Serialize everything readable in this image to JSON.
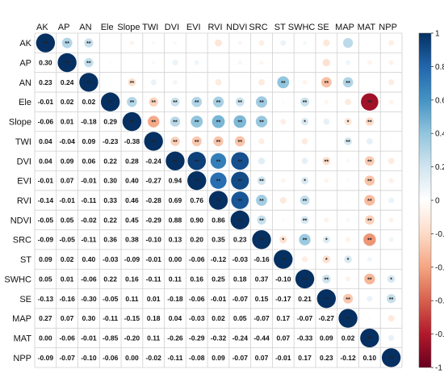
{
  "chart_data": {
    "type": "heatmap",
    "variables": [
      "AK",
      "AP",
      "AN",
      "Ele",
      "Slope",
      "TWI",
      "DVI",
      "EVI",
      "RVI",
      "NDVI",
      "SRC",
      "ST",
      "SWHC",
      "SE",
      "MAP",
      "MAT",
      "NPP"
    ],
    "lower_triangle": [
      [],
      [
        0.3
      ],
      [
        0.23,
        0.24
      ],
      [
        -0.01,
        0.02,
        0.02
      ],
      [
        -0.06,
        0.01,
        -0.18,
        0.29
      ],
      [
        0.04,
        -0.04,
        0.09,
        -0.23,
        -0.38
      ],
      [
        0.04,
        0.09,
        0.06,
        0.22,
        0.28,
        -0.24
      ],
      [
        -0.01,
        0.07,
        -0.01,
        0.3,
        0.4,
        -0.27,
        0.94
      ],
      [
        -0.14,
        -0.01,
        -0.11,
        0.33,
        0.46,
        -0.28,
        0.69,
        0.76
      ],
      [
        -0.05,
        0.05,
        -0.02,
        0.22,
        0.45,
        -0.29,
        0.88,
        0.9,
        0.86
      ],
      [
        -0.09,
        -0.05,
        -0.11,
        0.36,
        0.38,
        -0.1,
        0.13,
        0.2,
        0.35,
        0.23
      ],
      [
        0.09,
        0.02,
        0.4,
        -0.03,
        -0.09,
        -0.01,
        0.0,
        -0.06,
        -0.12,
        -0.03,
        -0.16
      ],
      [
        0.05,
        0.01,
        -0.06,
        0.22,
        0.16,
        -0.11,
        0.11,
        0.16,
        0.25,
        0.18,
        0.37,
        -0.1
      ],
      [
        -0.13,
        -0.16,
        -0.3,
        -0.05,
        0.11,
        0.01,
        -0.18,
        -0.06,
        -0.01,
        -0.07,
        0.15,
        -0.17,
        0.21
      ],
      [
        0.27,
        0.07,
        0.3,
        -0.11,
        -0.15,
        0.18,
        0.04,
        -0.03,
        0.02,
        0.05,
        -0.07,
        0.17,
        -0.07,
        -0.27
      ],
      [
        0.0,
        -0.06,
        -0.01,
        -0.85,
        -0.2,
        0.11,
        -0.26,
        -0.29,
        -0.32,
        -0.24,
        -0.44,
        0.07,
        -0.33,
        0.09,
        0.02
      ],
      [
        -0.09,
        -0.07,
        -0.1,
        -0.06,
        0.0,
        -0.02,
        -0.11,
        -0.08,
        0.09,
        -0.07,
        0.07,
        -0.01,
        0.17,
        0.23,
        -0.12,
        0.1
      ]
    ],
    "significance_marks": [
      [
        1,
        0,
        "**"
      ],
      [
        2,
        0,
        "**"
      ],
      [
        2,
        1,
        "**"
      ],
      [
        4,
        2,
        "**"
      ],
      [
        11,
        2,
        "**"
      ],
      [
        13,
        2,
        "**"
      ],
      [
        14,
        2,
        "**"
      ],
      [
        4,
        3,
        "**"
      ],
      [
        5,
        3,
        "**"
      ],
      [
        6,
        3,
        "**"
      ],
      [
        7,
        3,
        "**"
      ],
      [
        8,
        3,
        "**"
      ],
      [
        9,
        3,
        "**"
      ],
      [
        10,
        3,
        "**"
      ],
      [
        12,
        3,
        "**"
      ],
      [
        15,
        3,
        "**"
      ],
      [
        5,
        4,
        "**"
      ],
      [
        6,
        4,
        "**"
      ],
      [
        7,
        4,
        "**"
      ],
      [
        8,
        4,
        "**"
      ],
      [
        9,
        4,
        "**"
      ],
      [
        10,
        4,
        "**"
      ],
      [
        12,
        4,
        "*"
      ],
      [
        14,
        4,
        "*"
      ],
      [
        15,
        4,
        "**"
      ],
      [
        6,
        5,
        "**"
      ],
      [
        7,
        5,
        "**"
      ],
      [
        8,
        5,
        "**"
      ],
      [
        9,
        5,
        "**"
      ],
      [
        14,
        5,
        "**"
      ],
      [
        7,
        6,
        "**"
      ],
      [
        8,
        6,
        "**"
      ],
      [
        9,
        6,
        "**"
      ],
      [
        13,
        6,
        "**"
      ],
      [
        15,
        6,
        "**"
      ],
      [
        8,
        7,
        "**"
      ],
      [
        9,
        7,
        "**"
      ],
      [
        10,
        7,
        "**"
      ],
      [
        12,
        7,
        "*"
      ],
      [
        15,
        7,
        "**"
      ],
      [
        9,
        8,
        "**"
      ],
      [
        10,
        8,
        "**"
      ],
      [
        12,
        8,
        "**"
      ],
      [
        15,
        8,
        "**"
      ],
      [
        10,
        9,
        "**"
      ],
      [
        12,
        9,
        "**"
      ],
      [
        15,
        9,
        "**"
      ],
      [
        11,
        10,
        "*"
      ],
      [
        12,
        10,
        "**"
      ],
      [
        13,
        10,
        "*"
      ],
      [
        15,
        10,
        "**"
      ],
      [
        13,
        11,
        "*"
      ],
      [
        14,
        11,
        "*"
      ],
      [
        13,
        12,
        "**"
      ],
      [
        15,
        12,
        "**"
      ],
      [
        16,
        12,
        "*"
      ],
      [
        14,
        13,
        "**"
      ],
      [
        16,
        13,
        "**"
      ]
    ],
    "colorbar": {
      "range": [
        -1,
        1
      ],
      "ticks": [
        "1",
        "0.8",
        "0.6",
        "0.4",
        "0.2",
        "0",
        "-0.2",
        "-0.4",
        "-0.6",
        "-0.8",
        "-1"
      ]
    },
    "colors": {
      "positive": "#053061",
      "mid": "#ffffff",
      "negative": "#67001f"
    }
  }
}
